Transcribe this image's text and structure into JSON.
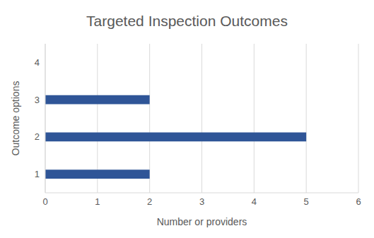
{
  "chart_data": {
    "type": "bar",
    "orientation": "horizontal",
    "title": "Targeted Inspection Outcomes",
    "x_label": "Number or providers",
    "y_label": "Outcome options",
    "categories": [
      "1",
      "2",
      "3",
      "4"
    ],
    "values": [
      2,
      5,
      2,
      0
    ],
    "color": "#2f5597",
    "xlim": [
      0,
      6
    ],
    "xticks": [
      0,
      1,
      2,
      3,
      4,
      5,
      6
    ],
    "grid": true
  }
}
